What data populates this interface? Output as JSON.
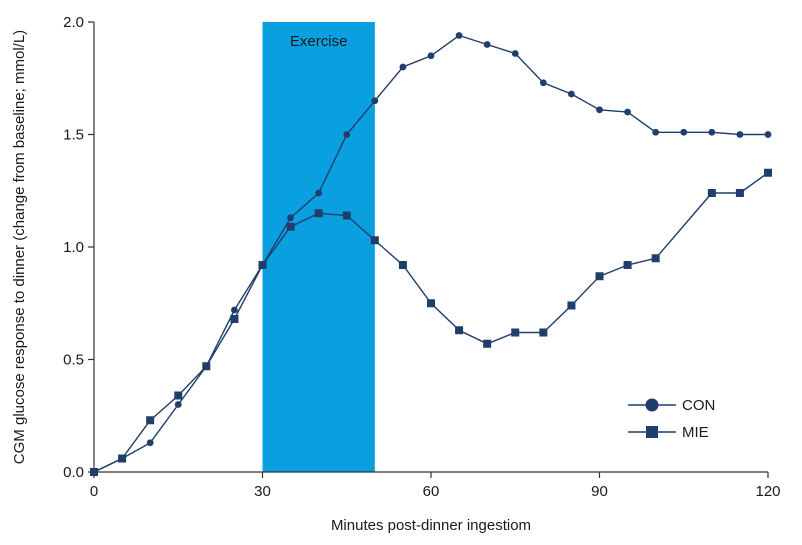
{
  "chart_data": {
    "type": "line",
    "xlabel": "Minutes post-dinner ingestiom",
    "ylabel": "CGM glucose response to dinner (change from baseline; mmol/L)",
    "xlim": [
      0,
      120
    ],
    "ylim": [
      0,
      2.0
    ],
    "x_ticks": [
      0,
      30,
      60,
      90,
      120
    ],
    "x_tick_labels": [
      "0",
      "30",
      "60",
      "90",
      "120"
    ],
    "y_ticks": [
      0,
      0.5,
      1.0,
      1.5,
      2.0
    ],
    "y_tick_labels": [
      "0.0",
      "0.5",
      "1.0",
      "1.5",
      "2.0"
    ],
    "grid": false,
    "legend_position": "bottom-right",
    "highlight_band": {
      "x_start": 30,
      "x_end": 50,
      "label": "Exercise",
      "color": "#0aa0e0"
    },
    "line_color": "#1f3e6c",
    "series": [
      {
        "name": "CON",
        "marker": "circle",
        "x": [
          0,
          5,
          10,
          15,
          20,
          25,
          30,
          35,
          40,
          45,
          50,
          55,
          60,
          65,
          70,
          75,
          80,
          85,
          90,
          95,
          100,
          105,
          110,
          115,
          120
        ],
        "y": [
          0.0,
          0.06,
          0.13,
          0.3,
          0.47,
          0.72,
          0.92,
          1.13,
          1.24,
          1.5,
          1.65,
          1.8,
          1.85,
          1.94,
          1.9,
          1.86,
          1.73,
          1.68,
          1.61,
          1.6,
          1.51,
          1.51,
          1.51,
          1.5,
          1.5
        ]
      },
      {
        "name": "MIE",
        "marker": "square",
        "x": [
          0,
          5,
          10,
          15,
          20,
          25,
          30,
          35,
          40,
          45,
          50,
          55,
          60,
          65,
          70,
          75,
          80,
          85,
          90,
          95,
          100,
          110,
          115,
          120
        ],
        "y": [
          0.0,
          0.06,
          0.23,
          0.34,
          0.47,
          0.68,
          0.92,
          1.09,
          1.15,
          1.14,
          1.03,
          0.92,
          0.75,
          0.63,
          0.57,
          0.62,
          0.62,
          0.74,
          0.87,
          0.92,
          0.95,
          1.24,
          1.24,
          1.33
        ]
      }
    ]
  }
}
